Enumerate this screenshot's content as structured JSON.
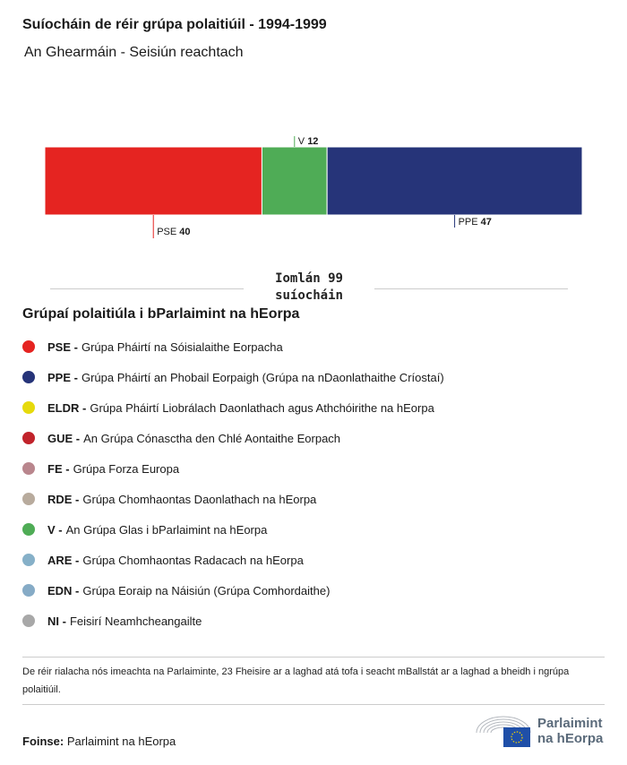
{
  "title": "Suíocháin de réir grúpa polaitiúil - 1994-1999",
  "subtitle": "An Ghearmáin - Seisiún reachtach",
  "chart_data": {
    "type": "bar",
    "orientation": "horizontal-stacked",
    "categories": [
      "PSE",
      "V",
      "PPE"
    ],
    "values": [
      40,
      12,
      47
    ],
    "colors": [
      "#e52421",
      "#4fac56",
      "#263479"
    ],
    "total": 99,
    "total_label": "Iomlán 99",
    "total_unit": "suíocháin"
  },
  "legend": {
    "title": "Grúpaí polaitiúla i bParlaimint na hEorpa",
    "items": [
      {
        "code": "PSE -",
        "name": "Grúpa Pháirtí na Sóisialaithe Eorpacha",
        "color": "#e52421"
      },
      {
        "code": "PPE -",
        "name": "Grúpa Pháirtí an Phobail Eorpaigh (Grúpa na nDaonlathaithe Críostaí)",
        "color": "#263479"
      },
      {
        "code": "ELDR -",
        "name": "Grúpa Pháirtí Liobrálach Daonlathach agus Athchóirithe na hEorpa",
        "color": "#e6da0c"
      },
      {
        "code": "GUE -",
        "name": "An Grúpa Cónasctha den Chlé Aontaithe Eorpach",
        "color": "#c1232b"
      },
      {
        "code": "FE -",
        "name": "Grúpa Forza Europa",
        "color": "#b9868d"
      },
      {
        "code": "RDE -",
        "name": "Grúpa Chomhaontas Daonlathach na hEorpa",
        "color": "#b8ab9d"
      },
      {
        "code": "V -",
        "name": "An Grúpa Glas i bParlaimint na hEorpa",
        "color": "#4fac56"
      },
      {
        "code": "ARE -",
        "name": "Grúpa Chomhaontas Radacach na hEorpa",
        "color": "#86b0c8"
      },
      {
        "code": "EDN -",
        "name": "Grúpa Eoraip na Náisiún (Grúpa Comhordaithe)",
        "color": "#86abc6"
      },
      {
        "code": "NI -",
        "name": "Feisirí Neamhcheangailte",
        "color": "#a8a8a8"
      }
    ]
  },
  "note": "De réir rialacha nós imeachta na Parlaiminte, 23 Fheisire ar a laghad atá tofa i seacht mBallstát ar a laghad a bheidh i ngrúpa polaitiúil.",
  "source": {
    "label": "Foinse:",
    "value": "Parlaimint na hEorpa"
  },
  "logo": {
    "line1": "Parlaimint",
    "line2": "na hEorpa"
  }
}
